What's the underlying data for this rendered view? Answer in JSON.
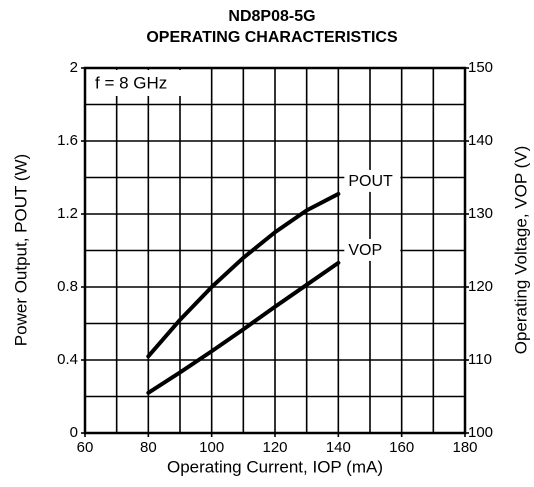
{
  "chart_data": {
    "type": "line",
    "title": "ND8P08-5G",
    "subtitle": "OPERATING CHARACTERISTICS",
    "x_label": "Operating Current, IOP (mA)",
    "y_label": "Power Output, POUT (W)",
    "y2_label": "Operating Voltage, VOP (V)",
    "annotation": "f = 8 GHz",
    "x": [
      80,
      90,
      100,
      110,
      120,
      130,
      140
    ],
    "series": [
      {
        "name": "POUT",
        "color": "#000000",
        "values": [
          0.42,
          0.62,
          0.8,
          0.96,
          1.1,
          1.22,
          1.31
        ]
      },
      {
        "name": "VOP",
        "color": "#000000",
        "axis": "y2",
        "values": [
          105.5,
          108.3,
          111.2,
          114.2,
          117.3,
          120.3,
          123.3
        ]
      }
    ],
    "xlim": [
      60,
      180
    ],
    "xticks": [
      60,
      80,
      100,
      120,
      140,
      160,
      180
    ],
    "xgrid": [
      70,
      80,
      90,
      100,
      110,
      120,
      130,
      140,
      150,
      160,
      170
    ],
    "ylim": [
      0,
      2
    ],
    "yticks": [
      0,
      0.4,
      0.8,
      1.2,
      1.6,
      2
    ],
    "ygrid": [
      0.2,
      0.4,
      0.6,
      0.8,
      1,
      1.2,
      1.4,
      1.6,
      1.8
    ],
    "y2lim": [
      100,
      150
    ],
    "y2ticks": [
      100,
      110,
      120,
      130,
      140,
      150
    ],
    "grid": true
  }
}
